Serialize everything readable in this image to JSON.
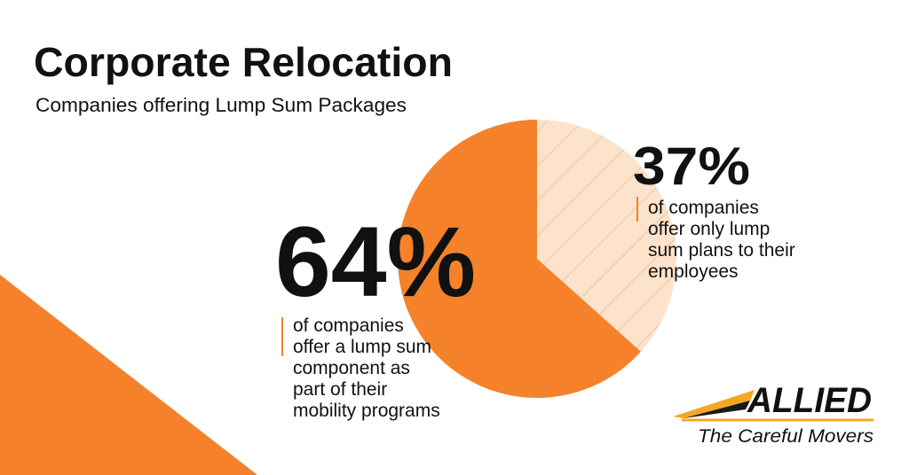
{
  "chart_data": {
    "type": "pie",
    "title": "Corporate Relocation",
    "subtitle": "Companies offering Lump Sum Packages",
    "values": [
      64,
      37
    ],
    "value_labels": [
      "64%",
      "37%"
    ],
    "colors": [
      "#f5822a",
      "#fde3cc"
    ],
    "descriptions": [
      [
        "of companies",
        "offer a lump sum",
        "component as",
        "part of their",
        "mobility programs"
      ],
      [
        "of companies",
        "offer only lump",
        "sum plans to their",
        "employees"
      ]
    ]
  },
  "logo": {
    "name": "ALLIED",
    "tagline": "The Careful Movers"
  }
}
